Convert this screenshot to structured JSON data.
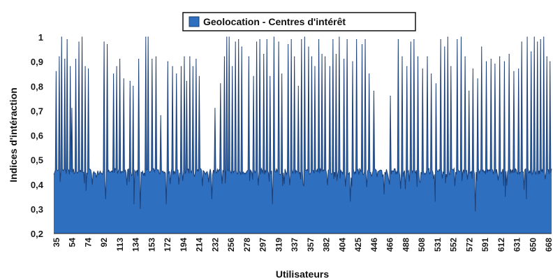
{
  "chart_data": {
    "type": "area",
    "title": "",
    "xlabel": "Utilisateurs",
    "ylabel": "Indices d'intéraction",
    "ylim": [
      0.2,
      1
    ],
    "yticks": [
      "0,2",
      "0,3",
      "0,4",
      "0,5",
      "0,6",
      "0,7",
      "0,8",
      "0,9",
      "1"
    ],
    "x_tick_labels": [
      "35",
      "54",
      "74",
      "92",
      "113",
      "134",
      "153",
      "172",
      "194",
      "214",
      "232",
      "256",
      "278",
      "297",
      "319",
      "337",
      "357",
      "382",
      "404",
      "425",
      "446",
      "466",
      "488",
      "508",
      "531",
      "552",
      "572",
      "591",
      "612",
      "631",
      "650",
      "668"
    ],
    "x_range": [
      35,
      668
    ],
    "grid": false,
    "legend_position": "top-center",
    "series": [
      {
        "name": "Geolocation - Centres d'intérêt",
        "color": "#2e6fc0",
        "baseline": 0.45,
        "spikes": [
          [
            38,
            0.86
          ],
          [
            42,
            0.92
          ],
          [
            45,
            1.0
          ],
          [
            49,
            0.91
          ],
          [
            52,
            0.99
          ],
          [
            56,
            0.88
          ],
          [
            58,
            0.71
          ],
          [
            63,
            0.91
          ],
          [
            67,
            0.98
          ],
          [
            71,
            1.0
          ],
          [
            75,
            0.88
          ],
          [
            79,
            0.87
          ],
          [
            99,
            0.98
          ],
          [
            103,
            0.97
          ],
          [
            111,
            0.85
          ],
          [
            115,
            0.88
          ],
          [
            119,
            0.91
          ],
          [
            124,
            0.83
          ],
          [
            132,
            0.82
          ],
          [
            136,
            0.8
          ],
          [
            143,
            0.91
          ],
          [
            152,
            1.0
          ],
          [
            155,
            1.0
          ],
          [
            160,
            0.91
          ],
          [
            165,
            0.92
          ],
          [
            171,
            0.68
          ],
          [
            180,
            0.9
          ],
          [
            186,
            0.88
          ],
          [
            191,
            0.85
          ],
          [
            197,
            0.88
          ],
          [
            201,
            0.92
          ],
          [
            204,
            0.82
          ],
          [
            208,
            0.92
          ],
          [
            212,
            0.88
          ],
          [
            216,
            0.91
          ],
          [
            220,
            0.84
          ],
          [
            240,
            0.71
          ],
          [
            247,
            0.81
          ],
          [
            252,
            0.92
          ],
          [
            255,
            1.0
          ],
          [
            258,
            1.0
          ],
          [
            262,
            0.88
          ],
          [
            266,
            0.98
          ],
          [
            270,
            0.99
          ],
          [
            274,
            0.96
          ],
          [
            283,
            0.92
          ],
          [
            289,
            0.84
          ],
          [
            293,
            0.98
          ],
          [
            297,
            0.99
          ],
          [
            302,
            0.93
          ],
          [
            306,
            0.99
          ],
          [
            310,
            0.84
          ],
          [
            315,
            1.0
          ],
          [
            321,
            0.98
          ],
          [
            325,
            0.85
          ],
          [
            333,
            0.97
          ],
          [
            337,
            0.99
          ],
          [
            341,
            0.92
          ],
          [
            346,
            0.8
          ],
          [
            350,
            0.99
          ],
          [
            354,
            1.0
          ],
          [
            359,
            0.96
          ],
          [
            363,
            0.92
          ],
          [
            367,
            0.88
          ],
          [
            372,
            0.99
          ],
          [
            376,
            0.93
          ],
          [
            380,
            0.92
          ],
          [
            386,
            0.88
          ],
          [
            390,
            0.99
          ],
          [
            394,
            0.93
          ],
          [
            398,
            1.0
          ],
          [
            404,
            0.91
          ],
          [
            408,
            0.99
          ],
          [
            415,
            0.9
          ],
          [
            420,
            0.99
          ],
          [
            427,
            0.97
          ],
          [
            431,
            0.99
          ],
          [
            436,
            0.85
          ],
          [
            442,
            0.78
          ],
          [
            463,
            0.76
          ],
          [
            473,
            0.99
          ],
          [
            478,
            0.92
          ],
          [
            484,
            0.88
          ],
          [
            489,
            0.98
          ],
          [
            493,
            0.99
          ],
          [
            498,
            0.92
          ],
          [
            504,
            0.87
          ],
          [
            510,
            0.92
          ],
          [
            515,
            0.85
          ],
          [
            521,
            0.81
          ],
          [
            527,
            0.99
          ],
          [
            532,
            0.96
          ],
          [
            536,
            1.0
          ],
          [
            540,
            0.88
          ],
          [
            548,
            0.99
          ],
          [
            553,
            1.0
          ],
          [
            558,
            0.92
          ],
          [
            563,
            0.78
          ],
          [
            568,
            0.87
          ],
          [
            574,
            0.83
          ],
          [
            579,
            0.96
          ],
          [
            585,
            0.9
          ],
          [
            591,
            0.91
          ],
          [
            596,
            0.89
          ],
          [
            602,
            0.92
          ],
          [
            608,
            0.9
          ],
          [
            614,
            0.93
          ],
          [
            620,
            0.86
          ],
          [
            626,
            0.87
          ],
          [
            630,
            0.98
          ],
          [
            637,
            1.0
          ],
          [
            642,
            0.94
          ],
          [
            646,
            1.0
          ],
          [
            650,
            0.98
          ],
          [
            654,
            0.99
          ],
          [
            658,
            1.0
          ],
          [
            662,
            0.92
          ],
          [
            666,
            0.9
          ]
        ],
        "dips": [
          [
            75,
            0.34
          ],
          [
            101,
            0.34
          ],
          [
            137,
            0.32
          ],
          [
            145,
            0.3
          ],
          [
            178,
            0.32
          ],
          [
            236,
            0.34
          ],
          [
            274,
            0.28
          ],
          [
            313,
            0.32
          ],
          [
            380,
            0.35
          ],
          [
            412,
            0.33
          ],
          [
            455,
            0.36
          ],
          [
            520,
            0.33
          ],
          [
            548,
            0.31
          ],
          [
            571,
            0.29
          ],
          [
            609,
            0.35
          ],
          [
            636,
            0.34
          ]
        ]
      }
    ]
  }
}
